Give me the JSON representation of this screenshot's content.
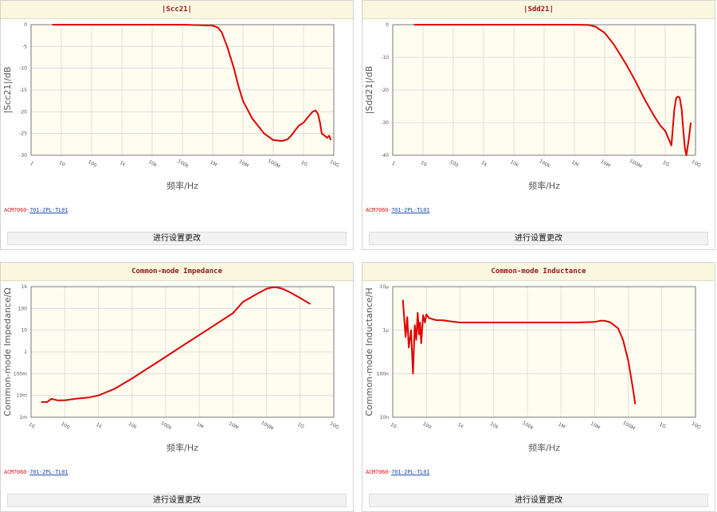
{
  "button_label": "进行设置更改",
  "part": {
    "prefix": "ACM7060-",
    "link": "701-2PL-TL01"
  },
  "colors": {
    "curve": "#e00000",
    "plot_bg": "#fffcf0",
    "title_bg": "#fbf6df",
    "title_text": "#8b1a1a",
    "grid": "#d9d9d9"
  },
  "chart_data": [
    {
      "type": "line",
      "title": "|Scc21|",
      "xlabel": "频率/Hz",
      "ylabel": "|Scc21|/dB",
      "x_scale": "log",
      "xlim": [
        1,
        10000000000
      ],
      "ylim": [
        -30,
        0
      ],
      "x_ticks": [
        "1",
        "10",
        "100",
        "1k",
        "10k",
        "100k",
        "1M",
        "10M",
        "100M",
        "1G",
        "10G"
      ],
      "y_ticks": [
        "0",
        "-5",
        "-10",
        "-15",
        "-20",
        "-25",
        "-30"
      ],
      "grid": true,
      "series": [
        {
          "x": [
            5,
            100,
            1000,
            10000,
            100000,
            1000000,
            1500000,
            2000000,
            3000000,
            5000000,
            7000000,
            10000000,
            20000000,
            50000000,
            100000000,
            200000000,
            300000000,
            400000000,
            500000000,
            700000000,
            1000000000,
            1500000000,
            2000000000,
            2500000000,
            3000000000,
            3500000000,
            4000000000,
            5000000000,
            6000000000,
            7000000000,
            8000000000
          ],
          "y": [
            0,
            0,
            0,
            0,
            0,
            -0.2,
            -0.7,
            -1.8,
            -5,
            -10,
            -14,
            -17.5,
            -21.5,
            -25,
            -26.5,
            -26.7,
            -26.3,
            -25.4,
            -24.5,
            -23.2,
            -22.5,
            -21,
            -20,
            -19.7,
            -20.5,
            -22.5,
            -25,
            -25.5,
            -26,
            -25.5,
            -26.5
          ]
        }
      ]
    },
    {
      "type": "line",
      "title": "|Sdd21|",
      "xlabel": "频率/Hz",
      "ylabel": "|Sdd21|/dB",
      "x_scale": "log",
      "xlim": [
        1,
        10000000000
      ],
      "ylim": [
        -40,
        0
      ],
      "x_ticks": [
        "1",
        "10",
        "100",
        "1k",
        "10k",
        "100k",
        "1M",
        "10M",
        "100M",
        "1G",
        "10G"
      ],
      "y_ticks": [
        "0",
        "-10",
        "-20",
        "-30",
        "-40"
      ],
      "grid": true,
      "series": [
        {
          "x": [
            5,
            100,
            1000,
            10000,
            100000,
            1000000,
            3000000,
            5000000,
            10000000,
            20000000,
            50000000,
            100000000,
            200000000,
            400000000,
            700000000,
            1000000000,
            1300000000,
            1600000000,
            2000000000,
            2300000000,
            2600000000,
            3000000000,
            3500000000,
            4000000000,
            4500000000,
            5000000000,
            6000000000,
            7000000000
          ],
          "y": [
            0,
            0,
            0,
            0,
            0,
            0,
            -0.1,
            -0.6,
            -2.5,
            -6,
            -12,
            -17,
            -22.5,
            -27.5,
            -31,
            -32.5,
            -35,
            -37,
            -26,
            -22.5,
            -22,
            -22.3,
            -26,
            -33,
            -38,
            -40,
            -35,
            -30
          ]
        }
      ]
    },
    {
      "type": "line",
      "title": "Common-mode Impedance",
      "xlabel": "频率/Hz",
      "ylabel": "Common-mode Impedance/Ω",
      "x_scale": "log",
      "y_scale": "log",
      "xlim": [
        10,
        10000000000
      ],
      "ylim": [
        0.001,
        1000
      ],
      "x_ticks": [
        "10",
        "100",
        "1k",
        "10k",
        "100k",
        "1M",
        "10M",
        "100M",
        "1G",
        "10G"
      ],
      "y_ticks": [
        "1k",
        "100",
        "10",
        "1",
        "100m",
        "10m",
        "1m"
      ],
      "grid": true,
      "series": [
        {
          "x": [
            20,
            30,
            40,
            60,
            100,
            200,
            500,
            1000,
            3000,
            10000,
            30000,
            100000,
            300000,
            1000000,
            3000000,
            10000000,
            20000000,
            50000000,
            100000000,
            150000000,
            200000000,
            300000000,
            500000000,
            1000000000,
            2000000000
          ],
          "y": [
            0.005,
            0.005,
            0.007,
            0.006,
            0.006,
            0.007,
            0.008,
            0.01,
            0.02,
            0.06,
            0.18,
            0.6,
            1.8,
            6,
            18,
            60,
            200,
            450,
            800,
            930,
            930,
            800,
            550,
            300,
            160
          ]
        }
      ]
    },
    {
      "type": "line",
      "title": "Common-mode Inductance",
      "xlabel": "频率/Hz",
      "ylabel": "Common-mode Inductance/H",
      "x_scale": "log",
      "y_scale": "log",
      "xlim": [
        10,
        10000000000
      ],
      "ylim": [
        1e-08,
        1e-05
      ],
      "x_ticks": [
        "10",
        "100",
        "1k",
        "10k",
        "100k",
        "1M",
        "10M",
        "100M",
        "1G",
        "10G"
      ],
      "y_ticks": [
        "10μ",
        "1μ",
        "100n",
        "10n"
      ],
      "grid": true,
      "series": [
        {
          "x": [
            20,
            24,
            27,
            30,
            35,
            40,
            45,
            50,
            55,
            60,
            65,
            70,
            80,
            90,
            100,
            120,
            150,
            200,
            300,
            500,
            1000,
            3000,
            10000,
            100000,
            1000000,
            3000000,
            10000000,
            15000000,
            20000000,
            30000000,
            50000000,
            70000000,
            100000000,
            130000000,
            150000000,
            160000000
          ],
          "y": [
            5e-06,
            7e-07,
            2e-06,
            4e-07,
            1e-06,
            1e-07,
            1.3e-06,
            6e-07,
            2.5e-06,
            8e-07,
            1.5e-06,
            5e-07,
            2.2e-06,
            1.5e-06,
            2.3e-06,
            1.9e-06,
            1.8e-06,
            1.7e-06,
            1.7e-06,
            1.6e-06,
            1.5e-06,
            1.5e-06,
            1.5e-06,
            1.5e-06,
            1.5e-06,
            1.5e-06,
            1.55e-06,
            1.65e-06,
            1.65e-06,
            1.5e-06,
            1.1e-06,
            6e-07,
            2e-07,
            6e-08,
            3e-08,
            2e-08
          ]
        }
      ]
    }
  ]
}
